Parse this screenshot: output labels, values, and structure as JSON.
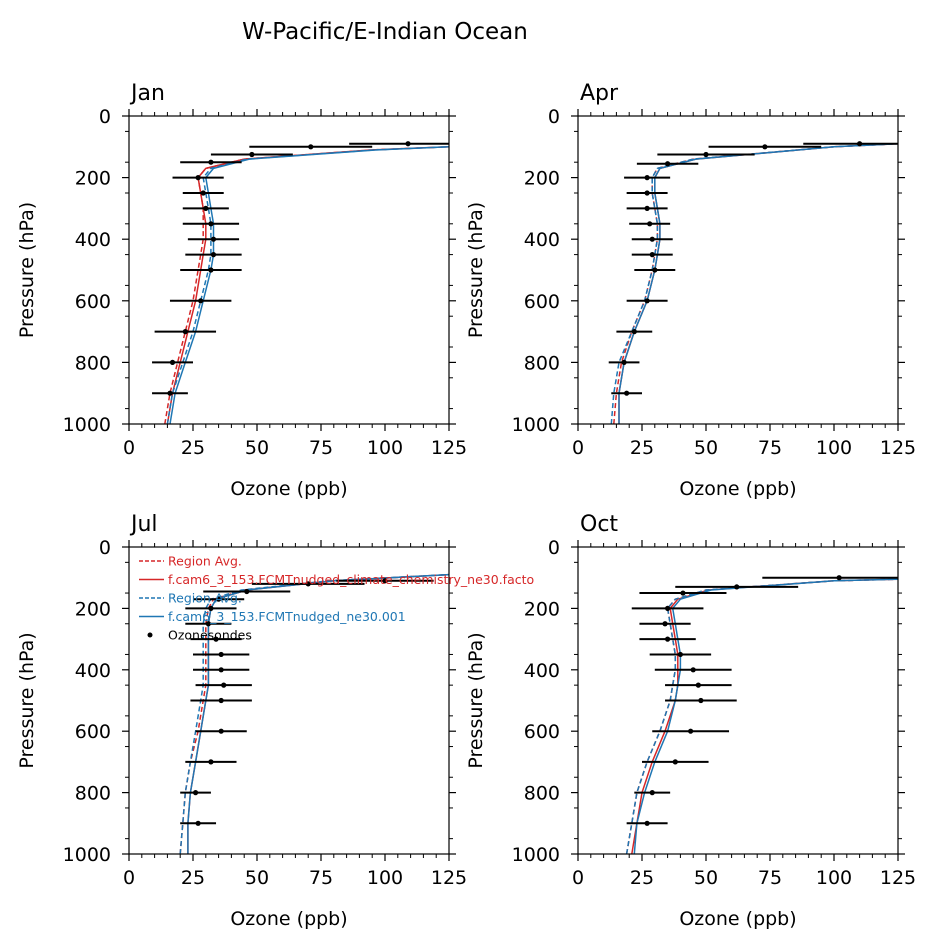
{
  "title": "W-Pacific/E-Indian Ocean",
  "legend": {
    "entries": [
      {
        "label": "Region Avg.",
        "color": "#d62728",
        "style": "dashed"
      },
      {
        "label": "f.cam6_3_153.FCMTnudged_climate_chemistry_ne30.facto",
        "color": "#d62728",
        "style": "solid"
      },
      {
        "label": "Region Avg.",
        "color": "#1f77b4",
        "style": "dashed"
      },
      {
        "label": "f.cam6_3_153.FCMTnudged_ne30.001",
        "color": "#1f77b4",
        "style": "solid"
      },
      {
        "label": "Ozonesondes",
        "color": "#000000",
        "style": "marker"
      }
    ]
  },
  "chart_data": [
    {
      "type": "line",
      "title": "Jan",
      "xlabel": "Ozone (ppb)",
      "ylabel": "Pressure (hPa)",
      "xlim": [
        0,
        125
      ],
      "ylim": [
        1000,
        0
      ],
      "xticks": [
        "0",
        "25",
        "50",
        "75",
        "100",
        "125"
      ],
      "yticks": [
        "0",
        "200",
        "400",
        "600",
        "800",
        "1000"
      ],
      "series": [
        {
          "name": "Region Avg.",
          "color": "#d62728",
          "style": "dashed",
          "x": [
            14,
            16,
            19,
            22,
            25,
            27,
            28,
            29,
            29,
            29,
            28,
            27,
            30,
            45,
            95,
            125
          ],
          "y": [
            1000,
            900,
            800,
            700,
            600,
            500,
            450,
            400,
            350,
            300,
            250,
            200,
            170,
            140,
            110,
            100
          ]
        },
        {
          "name": "f.cam6_3_153.FCMTnudged_climate_chemistry_ne30.facto",
          "color": "#d62728",
          "style": "solid",
          "x": [
            15,
            17,
            20,
            23,
            26,
            28,
            29,
            30,
            30,
            29,
            28,
            27,
            30,
            45,
            95,
            125
          ],
          "y": [
            1000,
            900,
            800,
            700,
            600,
            500,
            450,
            400,
            350,
            300,
            250,
            200,
            170,
            140,
            110,
            100
          ]
        },
        {
          "name": "Region Avg.",
          "color": "#1f77b4",
          "style": "dashed",
          "x": [
            15,
            17,
            21,
            25,
            28,
            31,
            32,
            32,
            32,
            31,
            30,
            29,
            32,
            46,
            96,
            125
          ],
          "y": [
            1000,
            900,
            800,
            700,
            600,
            500,
            450,
            400,
            350,
            300,
            250,
            200,
            170,
            140,
            110,
            100
          ]
        },
        {
          "name": "f.cam6_3_153.FCMTnudged_ne30.001",
          "color": "#1f77b4",
          "style": "solid",
          "x": [
            16,
            18,
            22,
            26,
            29,
            32,
            33,
            33,
            33,
            32,
            31,
            30,
            33,
            47,
            97,
            125
          ],
          "y": [
            1000,
            900,
            800,
            700,
            600,
            500,
            450,
            400,
            350,
            300,
            250,
            200,
            170,
            140,
            110,
            100
          ]
        }
      ],
      "sondes": {
        "x": [
          109,
          71,
          48,
          32,
          27,
          29,
          30,
          32,
          33,
          33,
          32,
          28,
          22,
          17,
          16
        ],
        "y": [
          90,
          100,
          125,
          150,
          200,
          250,
          300,
          350,
          400,
          450,
          500,
          600,
          700,
          800,
          900
        ],
        "err": [
          23,
          24,
          16,
          12,
          10,
          8,
          9,
          11,
          10,
          11,
          12,
          12,
          12,
          8,
          7
        ]
      }
    },
    {
      "type": "line",
      "title": "Apr",
      "xlabel": "Ozone (ppb)",
      "ylabel": "Pressure (hPa)",
      "xlim": [
        0,
        125
      ],
      "ylim": [
        1000,
        0
      ],
      "xticks": [
        "0",
        "25",
        "50",
        "75",
        "100",
        "125"
      ],
      "yticks": [
        "0",
        "200",
        "400",
        "600",
        "800",
        "1000"
      ],
      "series": [
        {
          "name": "Region Avg.",
          "color": "#d62728",
          "style": "dashed",
          "x": [
            14,
            15,
            17,
            21,
            26,
            29,
            30,
            31,
            31,
            30,
            29,
            29,
            31,
            45,
            100,
            125
          ],
          "y": [
            1000,
            900,
            800,
            700,
            600,
            500,
            450,
            400,
            350,
            300,
            250,
            200,
            170,
            140,
            100,
            90
          ]
        },
        {
          "name": "f.cam6_3_153.FCMTnudged_climate_chemistry_ne30.facto",
          "color": "#d62728",
          "style": "solid",
          "x": [
            16,
            16,
            18,
            22,
            27,
            30,
            31,
            32,
            32,
            31,
            30,
            30,
            32,
            46,
            100,
            125
          ],
          "y": [
            1000,
            900,
            800,
            700,
            600,
            500,
            450,
            400,
            350,
            300,
            250,
            200,
            170,
            140,
            100,
            90
          ]
        },
        {
          "name": "Region Avg.",
          "color": "#1f77b4",
          "style": "dashed",
          "x": [
            13,
            14,
            16,
            21,
            26,
            29,
            30,
            31,
            31,
            30,
            29,
            29,
            31,
            45,
            100,
            125
          ],
          "y": [
            1000,
            900,
            800,
            700,
            600,
            500,
            450,
            400,
            350,
            300,
            250,
            200,
            170,
            140,
            100,
            90
          ]
        },
        {
          "name": "f.cam6_3_153.FCMTnudged_ne30.001",
          "color": "#1f77b4",
          "style": "solid",
          "x": [
            16,
            16,
            18,
            22,
            27,
            30,
            31,
            32,
            32,
            31,
            30,
            30,
            32,
            46,
            100,
            125
          ],
          "y": [
            1000,
            900,
            800,
            700,
            600,
            500,
            450,
            400,
            350,
            300,
            250,
            200,
            170,
            140,
            100,
            90
          ]
        }
      ],
      "sondes": {
        "x": [
          110,
          73,
          50,
          35,
          27,
          27,
          27,
          28,
          29,
          29,
          30,
          27,
          22,
          18,
          19
        ],
        "y": [
          90,
          100,
          125,
          155,
          200,
          250,
          300,
          350,
          400,
          450,
          500,
          600,
          700,
          800,
          900
        ],
        "err": [
          22,
          22,
          19,
          12,
          9,
          8,
          8,
          8,
          8,
          8,
          8,
          8,
          7,
          6,
          6
        ]
      }
    },
    {
      "type": "line",
      "title": "Jul",
      "xlabel": "Ozone (ppb)",
      "ylabel": "Pressure (hPa)",
      "xlim": [
        0,
        125
      ],
      "ylim": [
        1000,
        0
      ],
      "xticks": [
        "0",
        "25",
        "50",
        "75",
        "100",
        "125"
      ],
      "yticks": [
        "0",
        "200",
        "400",
        "600",
        "800",
        "1000"
      ],
      "series": [
        {
          "name": "Region Avg.",
          "color": "#d62728",
          "style": "dashed",
          "x": [
            20,
            21,
            22,
            24,
            27,
            29,
            30,
            30,
            30,
            30,
            30,
            31,
            33,
            45,
            80,
            125
          ],
          "y": [
            1000,
            900,
            800,
            700,
            600,
            500,
            450,
            400,
            350,
            300,
            250,
            200,
            170,
            140,
            110,
            90
          ]
        },
        {
          "name": "f.cam6_3_153.FCMTnudged_climate_chemistry_ne30.facto",
          "color": "#d62728",
          "style": "solid",
          "x": [
            23,
            23,
            24,
            26,
            28,
            30,
            31,
            31,
            31,
            31,
            31,
            32,
            34,
            46,
            80,
            125
          ],
          "y": [
            1000,
            900,
            800,
            700,
            600,
            500,
            450,
            400,
            350,
            300,
            250,
            200,
            170,
            140,
            110,
            90
          ]
        },
        {
          "name": "Region Avg.",
          "color": "#1f77b4",
          "style": "dashed",
          "x": [
            20,
            21,
            22,
            24,
            26,
            28,
            29,
            29,
            29,
            29,
            29,
            30,
            32,
            44,
            78,
            125
          ],
          "y": [
            1000,
            900,
            800,
            700,
            600,
            500,
            450,
            400,
            350,
            300,
            250,
            200,
            170,
            140,
            110,
            90
          ]
        },
        {
          "name": "f.cam6_3_153.FCMTnudged_ne30.001",
          "color": "#1f77b4",
          "style": "solid",
          "x": [
            23,
            23,
            24,
            26,
            28,
            30,
            31,
            31,
            31,
            31,
            31,
            32,
            34,
            46,
            80,
            125
          ],
          "y": [
            1000,
            900,
            800,
            700,
            600,
            500,
            450,
            400,
            350,
            300,
            250,
            200,
            170,
            140,
            110,
            90
          ]
        }
      ],
      "sondes": {
        "x": [
          100,
          70,
          46,
          35,
          32,
          31,
          34,
          36,
          36,
          37,
          36,
          36,
          32,
          26,
          27
        ],
        "y": [
          110,
          120,
          145,
          170,
          200,
          250,
          300,
          350,
          400,
          450,
          500,
          600,
          700,
          800,
          900
        ],
        "err": [
          19,
          22,
          17,
          10,
          10,
          9,
          10,
          11,
          11,
          11,
          12,
          10,
          10,
          6,
          7
        ]
      }
    },
    {
      "type": "line",
      "title": "Oct",
      "xlabel": "Ozone (ppb)",
      "ylabel": "Pressure (hPa)",
      "xlim": [
        0,
        125
      ],
      "ylim": [
        1000,
        0
      ],
      "xticks": [
        "0",
        "25",
        "50",
        "75",
        "100",
        "125"
      ],
      "yticks": [
        "0",
        "200",
        "400",
        "600",
        "800",
        "1000"
      ],
      "series": [
        {
          "name": "Region Avg.",
          "color": "#d62728",
          "style": "dashed",
          "x": [
            19,
            21,
            23,
            27,
            32,
            36,
            37,
            38,
            38,
            37,
            36,
            35,
            38,
            50,
            100,
            125
          ],
          "y": [
            1000,
            900,
            800,
            700,
            600,
            500,
            450,
            400,
            350,
            300,
            250,
            200,
            170,
            140,
            110,
            105
          ]
        },
        {
          "name": "f.cam6_3_153.FCMTnudged_climate_chemistry_ne30.facto",
          "color": "#d62728",
          "style": "solid",
          "x": [
            21,
            23,
            25,
            29,
            34,
            38,
            39,
            39,
            39,
            38,
            37,
            36,
            39,
            51,
            100,
            125
          ],
          "y": [
            1000,
            900,
            800,
            700,
            600,
            500,
            450,
            400,
            350,
            300,
            250,
            200,
            170,
            140,
            110,
            105
          ]
        },
        {
          "name": "Region Avg.",
          "color": "#1f77b4",
          "style": "dashed",
          "x": [
            19,
            21,
            23,
            27,
            32,
            36,
            37,
            38,
            38,
            37,
            36,
            35,
            38,
            50,
            100,
            125
          ],
          "y": [
            1000,
            900,
            800,
            700,
            600,
            500,
            450,
            400,
            350,
            300,
            250,
            200,
            170,
            140,
            110,
            105
          ]
        },
        {
          "name": "f.cam6_3_153.FCMTnudged_ne30.001",
          "color": "#1f77b4",
          "style": "solid",
          "x": [
            22,
            23,
            26,
            30,
            35,
            38,
            39,
            40,
            40,
            39,
            38,
            37,
            40,
            52,
            100,
            125
          ],
          "y": [
            1000,
            900,
            800,
            700,
            600,
            500,
            450,
            400,
            350,
            300,
            250,
            200,
            170,
            140,
            110,
            105
          ]
        }
      ],
      "sondes": {
        "x": [
          102,
          62,
          41,
          35,
          34,
          35,
          40,
          45,
          47,
          48,
          44,
          38,
          29,
          27
        ],
        "y": [
          100,
          130,
          150,
          200,
          250,
          300,
          350,
          400,
          450,
          500,
          600,
          700,
          800,
          900
        ],
        "err": [
          30,
          24,
          17,
          14,
          10,
          11,
          12,
          15,
          13,
          14,
          15,
          13,
          7,
          8
        ]
      }
    }
  ]
}
